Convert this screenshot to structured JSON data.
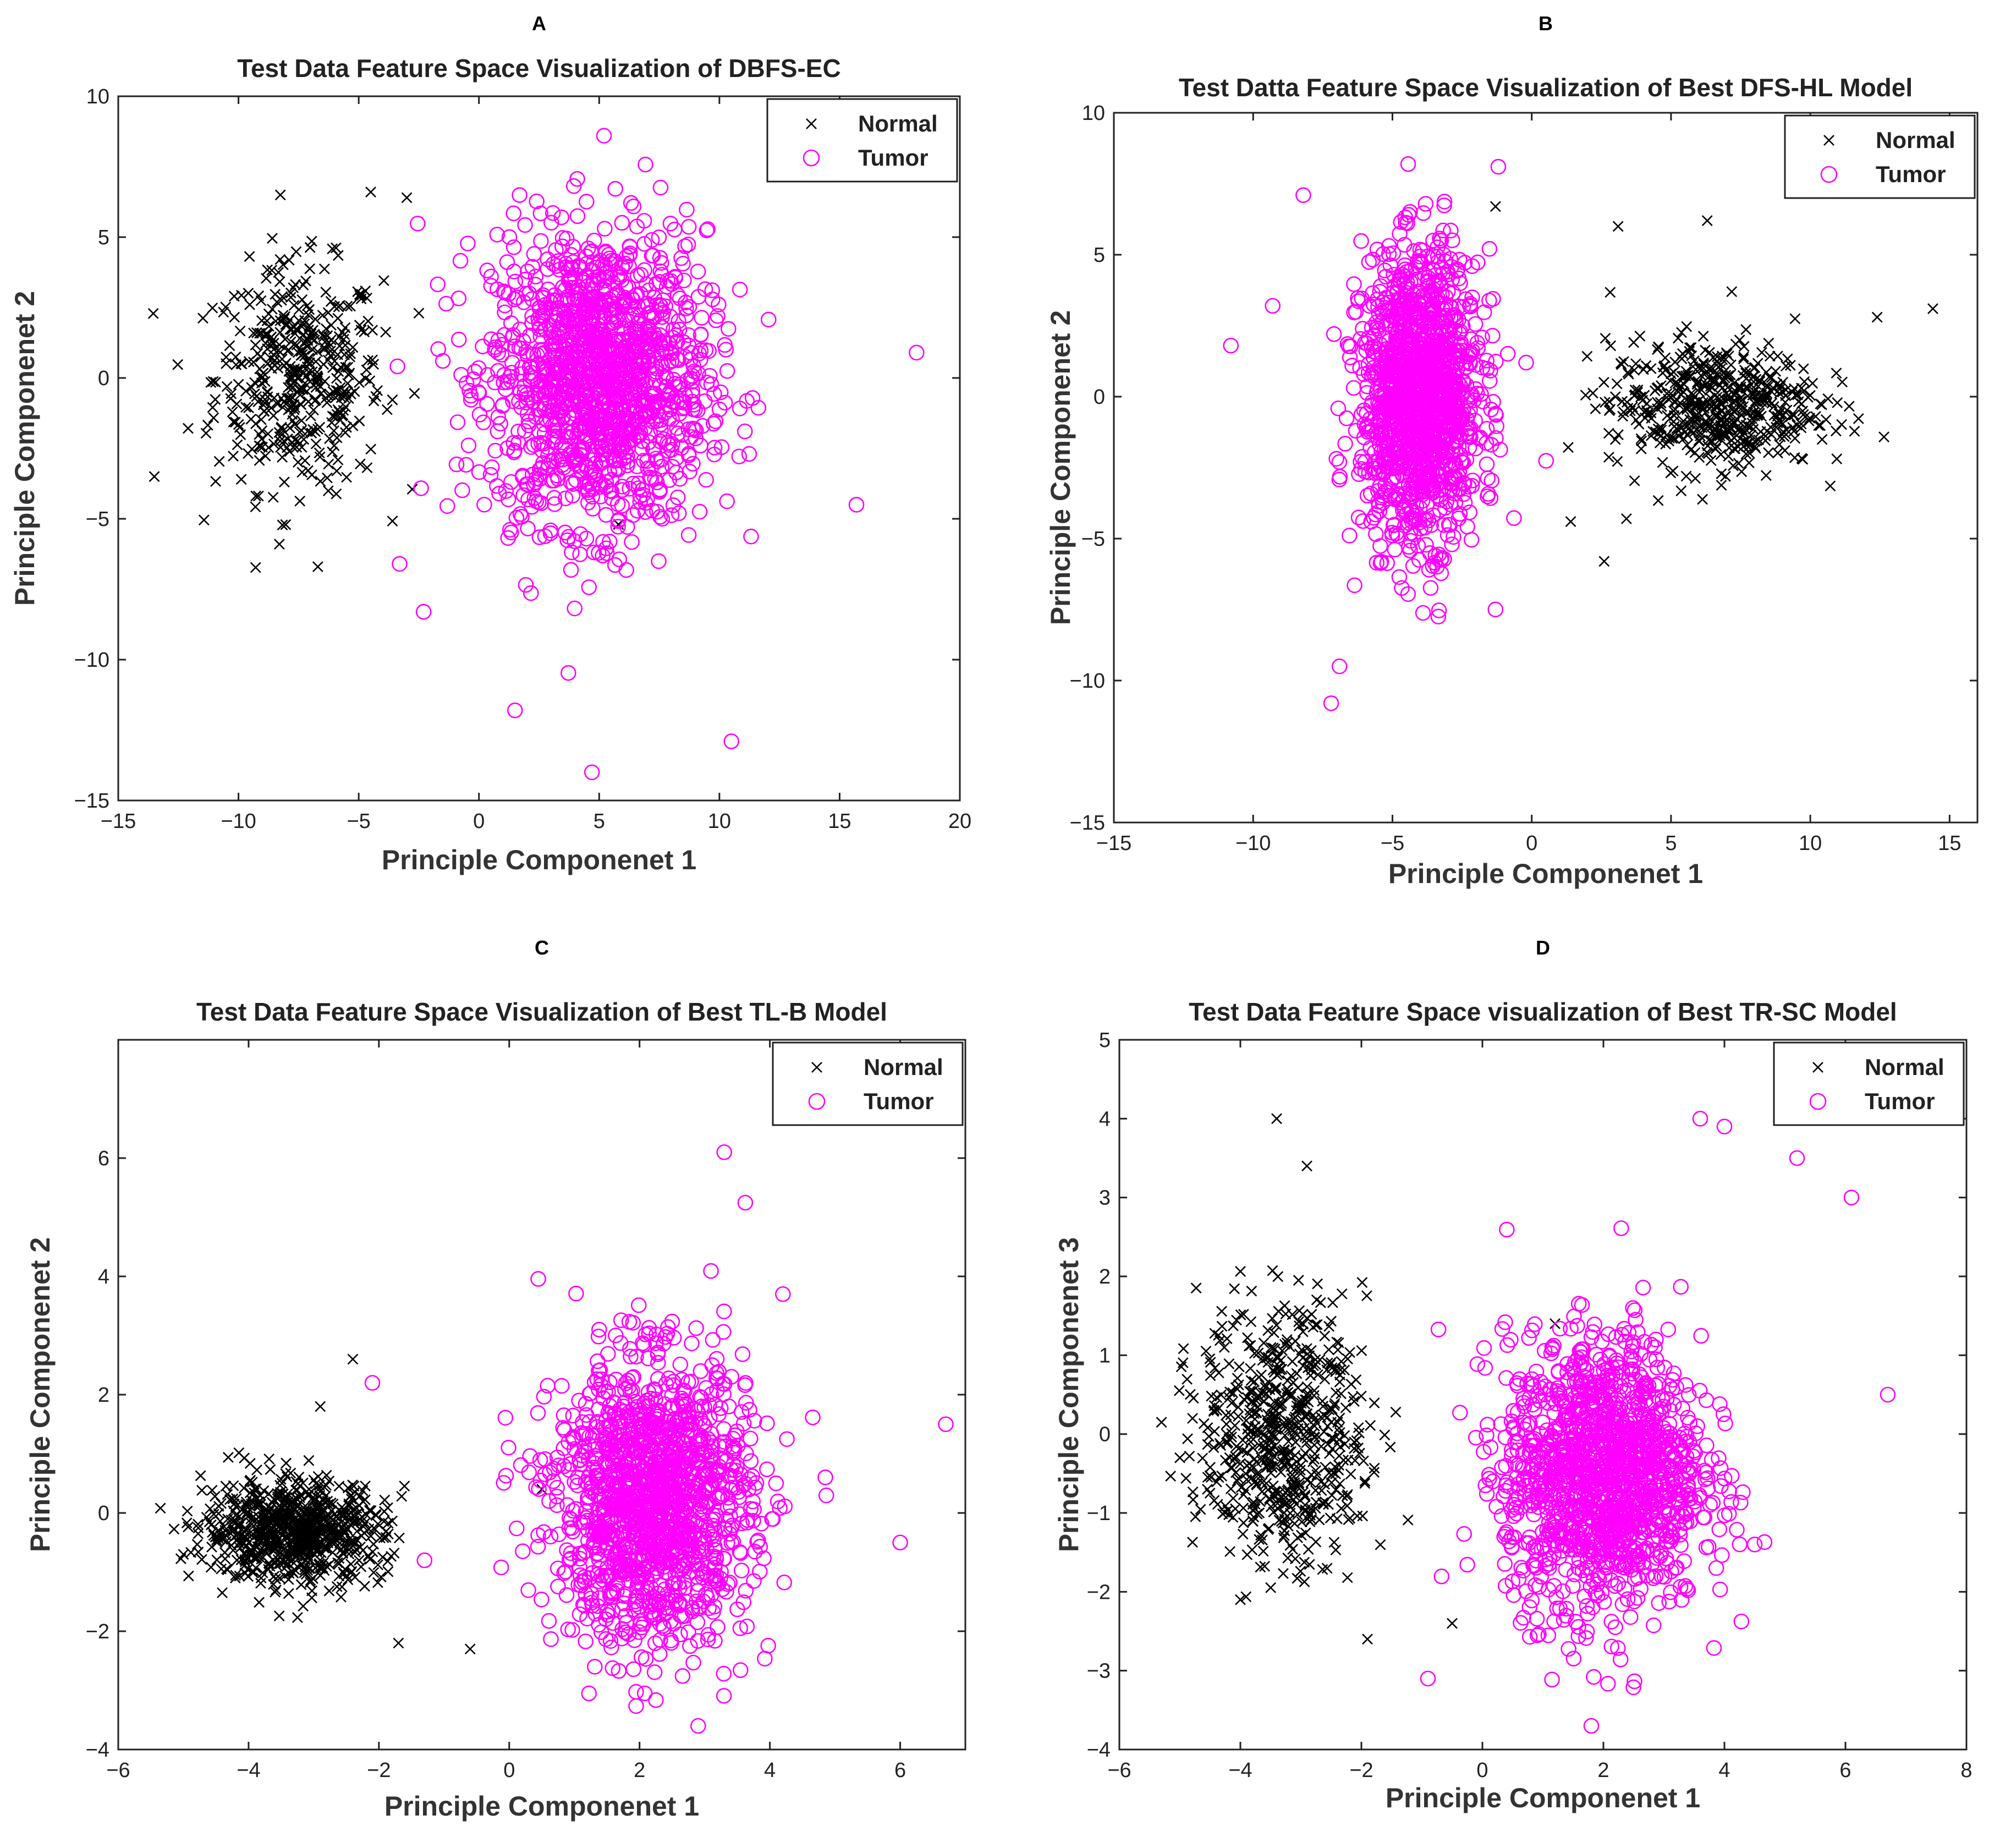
{
  "figure": {
    "panels": [
      {
        "label": "A",
        "title": "Test Data Feature Space Visualization of DBFS-EC",
        "xlabel": "Principle Componenet 1",
        "ylabel": "Principle Componenet 2",
        "xlim": [
          -15,
          20
        ],
        "ylim": [
          -15,
          10
        ],
        "xticks": [
          -15,
          -10,
          -5,
          0,
          5,
          10,
          15,
          20
        ],
        "yticks": [
          -15,
          -10,
          -5,
          0,
          5,
          10
        ],
        "legend": [
          "Normal",
          "Tumor"
        ]
      },
      {
        "label": "B",
        "title": "Test Datta Feature Space Visualization of Best DFS-HL Model",
        "xlabel": "Principle Componenet 1",
        "ylabel": "Principle Componenet 2",
        "xlim": [
          -15,
          16
        ],
        "ylim": [
          -15,
          10
        ],
        "xticks": [
          -15,
          -10,
          -5,
          0,
          5,
          10,
          15
        ],
        "yticks": [
          -15,
          -10,
          -5,
          0,
          5,
          10
        ],
        "legend": [
          "Normal",
          "Tumor"
        ]
      },
      {
        "label": "C",
        "title": "Test Data Feature Space Visualization of Best TL-B Model",
        "xlabel": "Principle Componenet 1",
        "ylabel": "Principle Componenet 2",
        "xlim": [
          -6,
          7
        ],
        "ylim": [
          -4,
          8
        ],
        "xticks": [
          -6,
          -4,
          -2,
          0,
          2,
          4,
          6
        ],
        "yticks": [
          -4,
          -2,
          0,
          2,
          4,
          6
        ],
        "legend": [
          "Normal",
          "Tumor"
        ]
      },
      {
        "label": "D",
        "title": "Test Data Feature Space visualization of Best TR-SC Model",
        "xlabel": "Principle Componenet 1",
        "ylabel": "Principle Componenet 3",
        "xlim": [
          -6,
          8
        ],
        "ylim": [
          -4,
          5
        ],
        "xticks": [
          -6,
          -4,
          -2,
          0,
          2,
          4,
          6,
          8
        ],
        "yticks": [
          -4,
          -3,
          -2,
          -1,
          0,
          1,
          2,
          3,
          4,
          5
        ],
        "legend": [
          "Normal",
          "Tumor"
        ]
      }
    ]
  },
  "chart_data": [
    {
      "type": "scatter",
      "title": "Test Data Feature Space Visualization of DBFS-EC",
      "xlabel": "Principle Componenet 1",
      "ylabel": "Principle Componenet 2",
      "xlim": [
        -15,
        20
      ],
      "ylim": [
        -15,
        10
      ],
      "grid": false,
      "legend_position": "top-right",
      "series": [
        {
          "name": "Normal",
          "marker": "x",
          "color": "#000000",
          "center": [
            -7.5,
            0
          ],
          "spread": [
            2.8,
            3.2
          ],
          "count": 450,
          "extremes": [
            [
              -13.5,
              -3.5
            ],
            [
              -4.5,
              6.6
            ],
            [
              -3,
              6.4
            ],
            [
              -6.7,
              -6.7
            ],
            [
              -8.3,
              -5.9
            ],
            [
              -2.5,
              2.3
            ],
            [
              5.8,
              -5.2
            ]
          ]
        },
        {
          "name": "Tumor",
          "marker": "o",
          "color": "#ff00ff",
          "center": [
            5,
            0
          ],
          "spread": [
            3.6,
            4.2
          ],
          "count": 1400,
          "extremes": [
            [
              18.2,
              0.9
            ],
            [
              5.2,
              8.6
            ],
            [
              4.7,
              -14
            ],
            [
              10.5,
              -12.9
            ],
            [
              15.7,
              -4.5
            ],
            [
              -3.3,
              -6.6
            ],
            [
              -2.3,
              -8.3
            ],
            [
              1.5,
              -11.8
            ]
          ]
        }
      ]
    },
    {
      "type": "scatter",
      "title": "Test Datta Feature Space Visualization of Best DFS-HL Model",
      "xlabel": "Principle Componenet 1",
      "ylabel": "Principle Componenet 2",
      "xlim": [
        -15,
        16
      ],
      "ylim": [
        -15,
        10
      ],
      "grid": false,
      "legend_position": "top-right",
      "series": [
        {
          "name": "Normal",
          "marker": "x",
          "color": "#000000",
          "center": [
            6.5,
            -0.3
          ],
          "spread": [
            3.0,
            1.8
          ],
          "count": 550,
          "extremes": [
            [
              14.4,
              3.1
            ],
            [
              6.3,
              6.2
            ],
            [
              3.1,
              6
            ],
            [
              1.4,
              -4.4
            ],
            [
              2.6,
              -5.8
            ],
            [
              3.4,
              -4.3
            ],
            [
              -1.3,
              6.7
            ],
            [
              12.4,
              2.8
            ]
          ]
        },
        {
          "name": "Tumor",
          "marker": "o",
          "color": "#ff00ff",
          "center": [
            -4,
            0
          ],
          "spread": [
            1.7,
            4.0
          ],
          "count": 1400,
          "extremes": [
            [
              -10.8,
              1.8
            ],
            [
              -7.2,
              -10.8
            ],
            [
              -9.3,
              3.2
            ],
            [
              -1.2,
              8.1
            ],
            [
              -8.2,
              7.1
            ],
            [
              -0.2,
              1.2
            ],
            [
              -6.9,
              -9.5
            ]
          ]
        }
      ]
    },
    {
      "type": "scatter",
      "title": "Test Data Feature Space Visualization of Best TL-B Model",
      "xlabel": "Principle Componenet 1",
      "ylabel": "Principle Componenet 2",
      "xlim": [
        -6,
        7
      ],
      "ylim": [
        -4,
        8
      ],
      "grid": false,
      "legend_position": "top-right",
      "series": [
        {
          "name": "Normal",
          "marker": "x",
          "color": "#000000",
          "center": [
            -3.3,
            -0.3
          ],
          "spread": [
            1.1,
            0.7
          ],
          "count": 800,
          "extremes": [
            [
              -5,
              -0.7
            ],
            [
              -2.4,
              2.6
            ],
            [
              -1.7,
              -2.2
            ],
            [
              -0.6,
              -2.3
            ],
            [
              0.5,
              0.4
            ],
            [
              -2.9,
              1.8
            ]
          ]
        },
        {
          "name": "Tumor",
          "marker": "o",
          "color": "#ff00ff",
          "center": [
            2.2,
            0.2
          ],
          "spread": [
            1.2,
            1.9
          ],
          "count": 1400,
          "extremes": [
            [
              6.7,
              1.5
            ],
            [
              3.3,
              6.1
            ],
            [
              2.9,
              -3.6
            ],
            [
              -2.1,
              2.2
            ],
            [
              -1.3,
              -0.8
            ],
            [
              6,
              -0.5
            ],
            [
              4.2,
              3.7
            ]
          ]
        }
      ]
    },
    {
      "type": "scatter",
      "title": "Test Data Feature Space visualization of Best TR-SC Model",
      "xlabel": "Principle Componenet 1",
      "ylabel": "Principle Componenet 3",
      "xlim": [
        -6,
        8
      ],
      "ylim": [
        -4,
        5
      ],
      "grid": false,
      "legend_position": "top-right",
      "series": [
        {
          "name": "Normal",
          "marker": "x",
          "color": "#000000",
          "center": [
            -3.3,
            0
          ],
          "spread": [
            1.1,
            1.3
          ],
          "count": 650,
          "extremes": [
            [
              -3.4,
              4
            ],
            [
              -5,
              -0.3
            ],
            [
              -2.9,
              3.4
            ],
            [
              -1.9,
              -2.6
            ],
            [
              -0.5,
              -2.4
            ],
            [
              1.2,
              1.4
            ],
            [
              -4,
              -2.1
            ]
          ]
        },
        {
          "name": "Tumor",
          "marker": "o",
          "color": "#ff00ff",
          "center": [
            2,
            -0.5
          ],
          "spread": [
            1.3,
            1.4
          ],
          "count": 1400,
          "extremes": [
            [
              6.7,
              0.5
            ],
            [
              3.6,
              4
            ],
            [
              4,
              3.9
            ],
            [
              1.8,
              -3.7
            ],
            [
              -0.9,
              -3.1
            ],
            [
              5.2,
              3.5
            ],
            [
              6.1,
              3
            ],
            [
              4.5,
              -1.4
            ]
          ]
        }
      ]
    }
  ]
}
